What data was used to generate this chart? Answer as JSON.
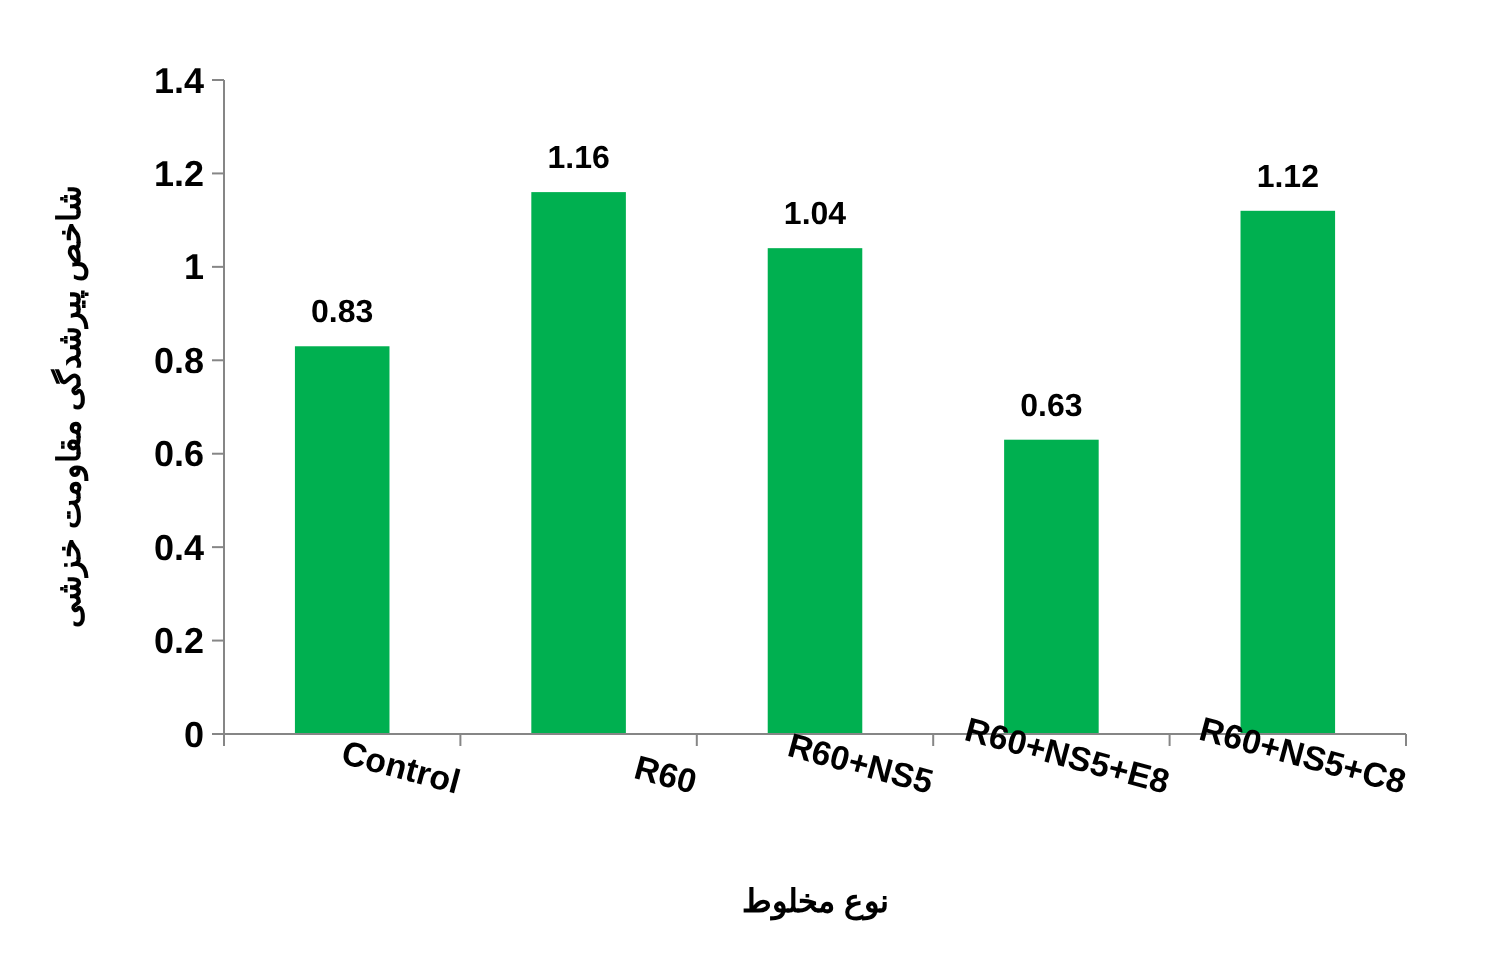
{
  "chart_data": {
    "type": "bar",
    "xlabel": "نوع مخلوط",
    "ylabel": "شاخص پیرشدگی مقاومت خزشی",
    "categories": [
      "Control",
      "R60",
      "R60+NS5",
      "R60+NS5+E8",
      "R60+NS5+C8"
    ],
    "values": [
      0.83,
      1.16,
      1.04,
      0.63,
      1.12
    ],
    "color": "#00b050",
    "ylim": [
      0,
      1.4
    ],
    "yticks": [
      0,
      {
        "value": 0.2,
        "label": "0.2"
      },
      {
        "value": 0.4,
        "label": "0.4"
      },
      {
        "value": 0.6,
        "label": "0.6"
      },
      {
        "value": 0.8,
        "label": "0.8"
      },
      1,
      {
        "value": 1.2,
        "label": "1.2"
      },
      {
        "value": 1.4,
        "label": "1.4"
      }
    ],
    "data_labels": true
  }
}
